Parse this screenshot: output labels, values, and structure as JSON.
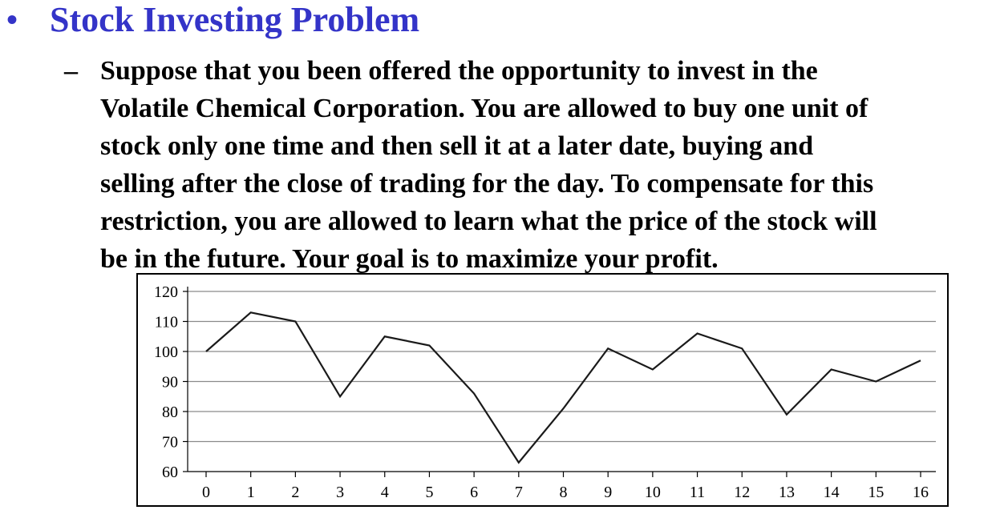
{
  "slide": {
    "bullet_symbol": "•",
    "title": "Stock Investing Problem",
    "sub_bullet_symbol": "–",
    "paragraph_lines": [
      "Suppose that you been offered the opportunity to invest in the",
      "Volatile Chemical Corporation. You are allowed to buy one unit of",
      "stock only one time and then sell it at a later date, buying and",
      "selling after the close of trading for the day. To compensate for this",
      "restriction, you are allowed to learn what the price of the stock will",
      "be in the future. Your goal is to maximize your profit."
    ],
    "title_color": "#3434c8",
    "text_color": "#000000"
  },
  "chart_data": {
    "type": "line",
    "title": "",
    "xlabel": "",
    "ylabel": "",
    "x": [
      0,
      1,
      2,
      3,
      4,
      5,
      6,
      7,
      8,
      9,
      10,
      11,
      12,
      13,
      14,
      15,
      16
    ],
    "series": [
      {
        "values": [
          100,
          113,
          110,
          85,
          105,
          102,
          86,
          63,
          81,
          101,
          94,
          106,
          101,
          79,
          94,
          90,
          97
        ]
      }
    ],
    "xlim": [
      0,
      16
    ],
    "ylim": [
      60,
      120
    ],
    "yticks": [
      60,
      70,
      80,
      90,
      100,
      110,
      120
    ],
    "xticks": [
      0,
      1,
      2,
      3,
      4,
      5,
      6,
      7,
      8,
      9,
      10,
      11,
      12,
      13,
      14,
      15,
      16
    ],
    "grid": "horizontal",
    "line_color": "#1a1a1a",
    "grid_color": "#8a8a8a"
  }
}
